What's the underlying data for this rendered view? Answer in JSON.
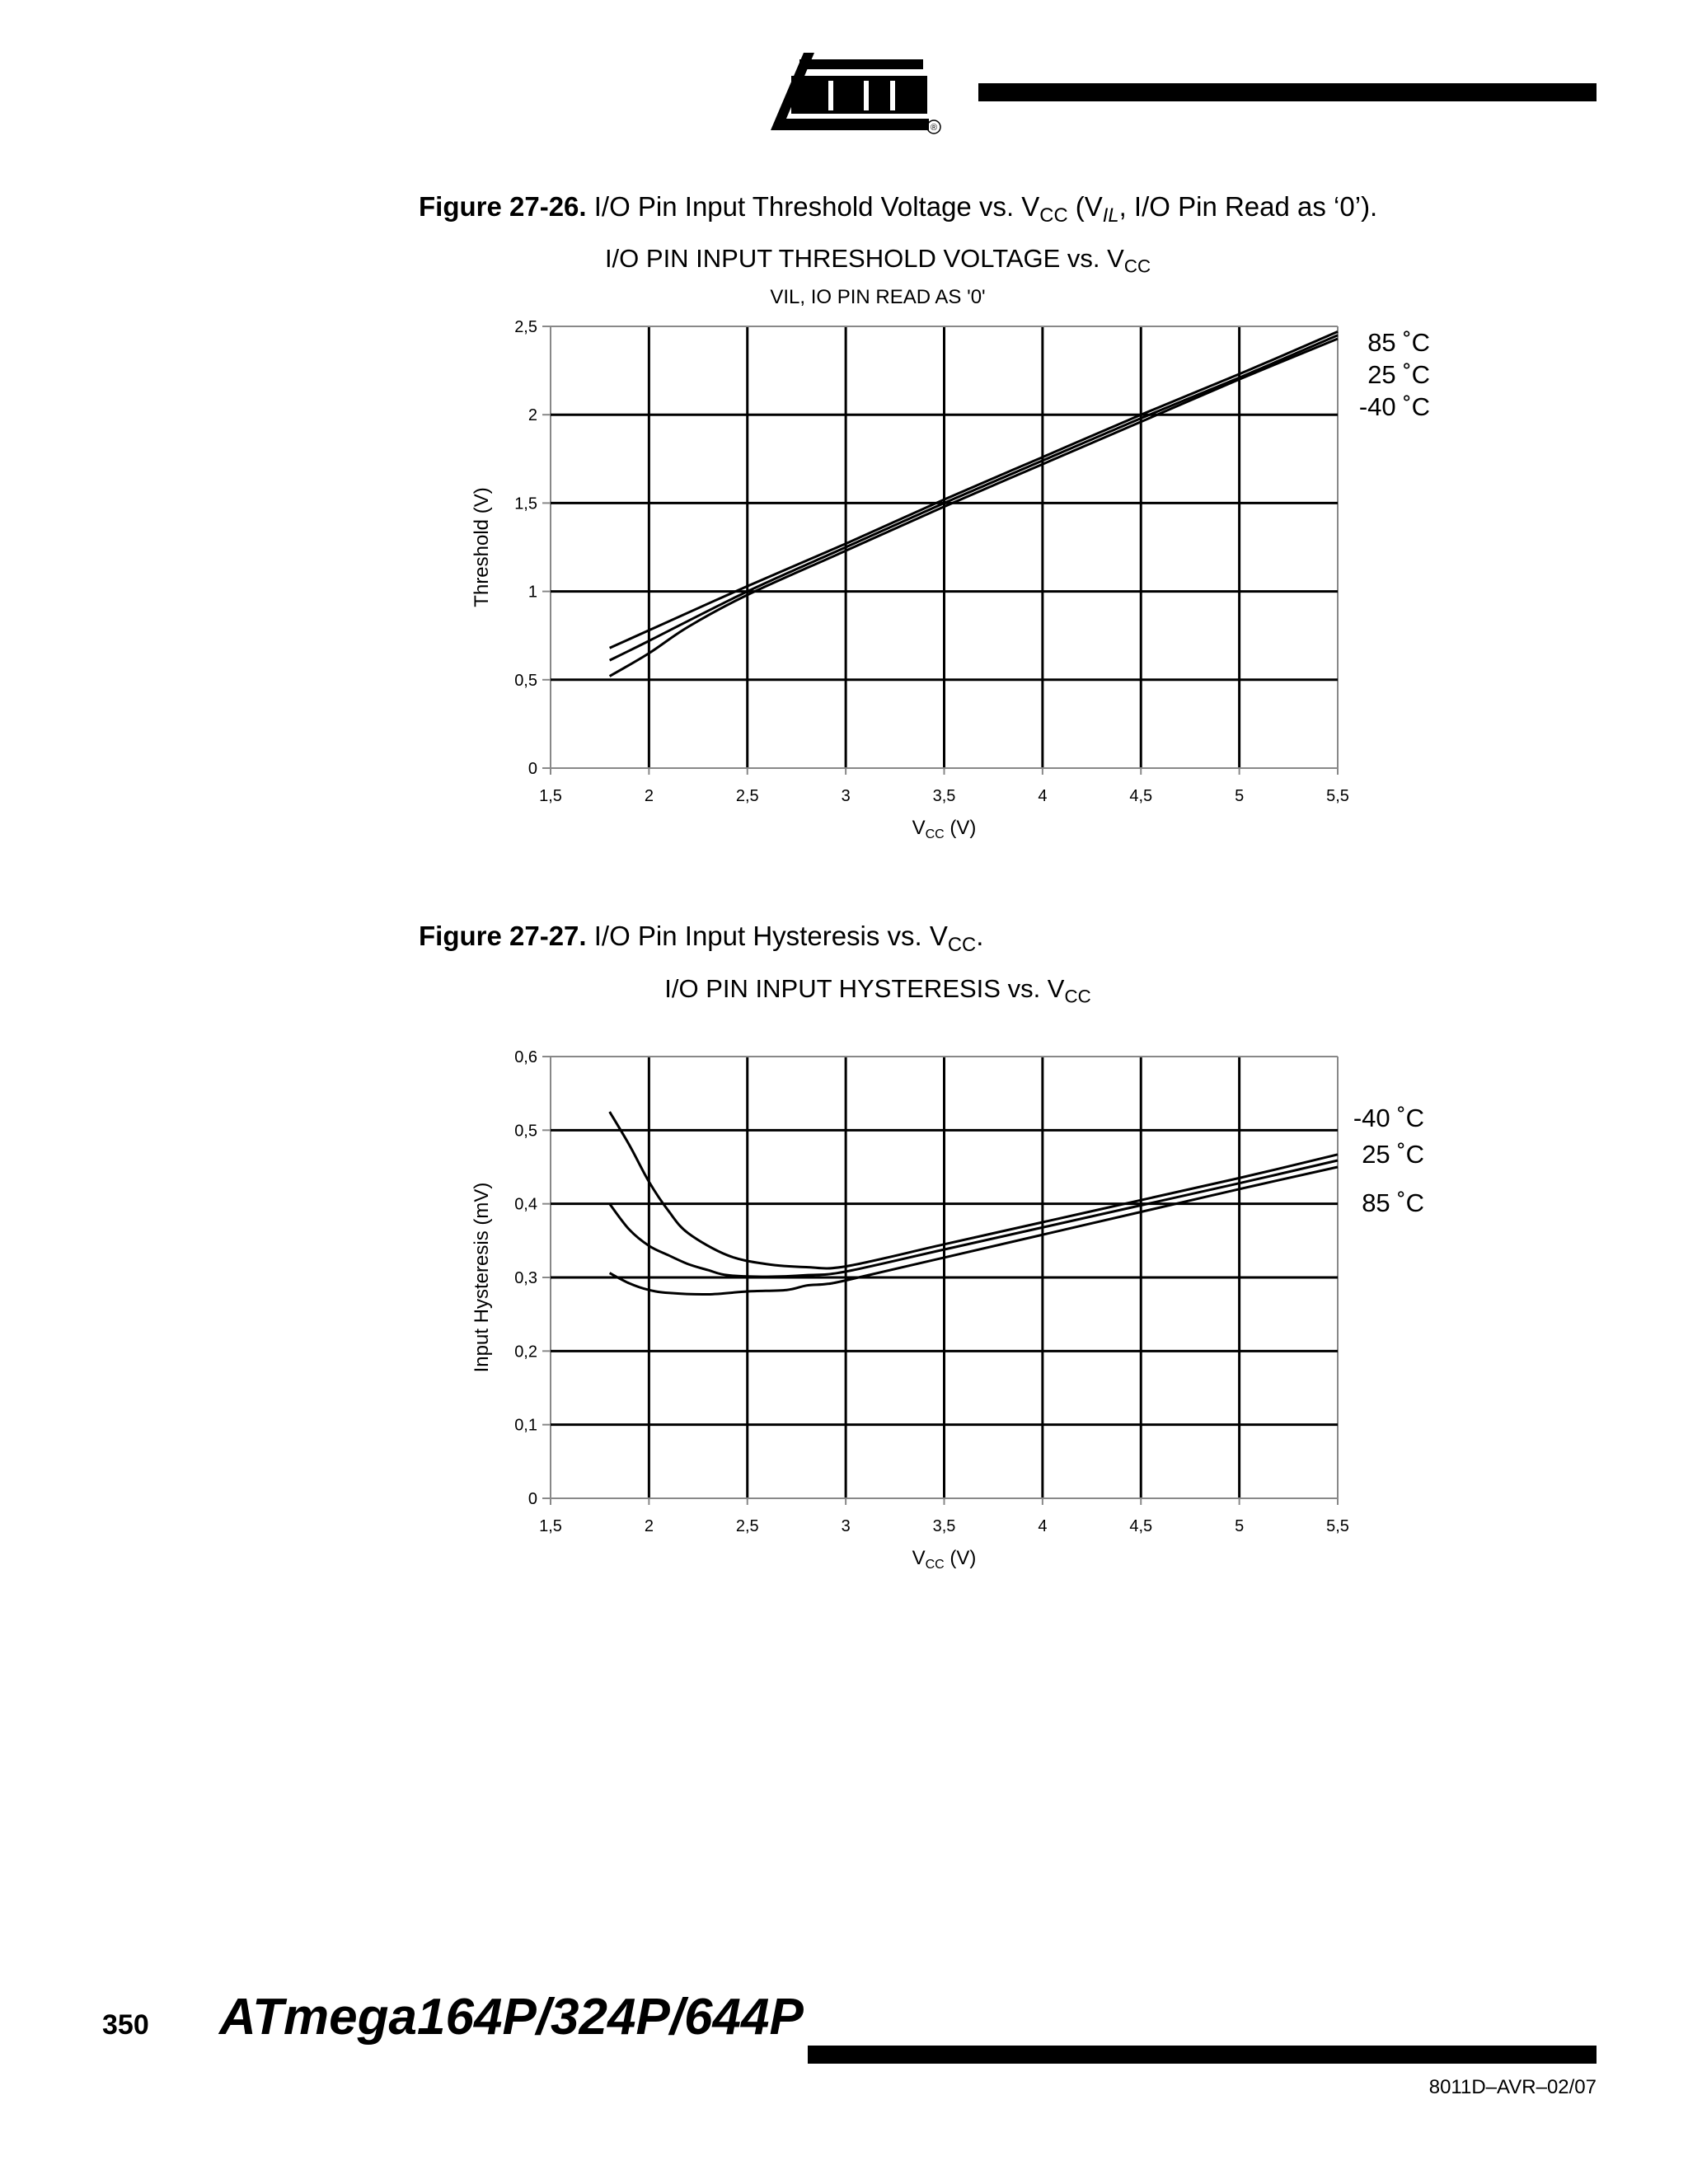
{
  "header": {
    "logo_text": "ATMEL",
    "logo_mark": "®"
  },
  "figure1": {
    "label": "Figure 27-26.",
    "caption_pre": "I/O Pin Input Threshold Voltage vs. V",
    "caption_sub": "CC",
    "caption_mid": " (V",
    "caption_sub2": "IL",
    "caption_post": ", I/O Pin Read as ‘0’).",
    "title_pre": "I/O PIN INPUT THRESHOLD VOLTAGE vs. V",
    "title_sub": "CC",
    "subtitle": "VIL, IO PIN READ AS '0'"
  },
  "figure2": {
    "label": "Figure 27-27.",
    "caption_pre": "I/O Pin Input Hysteresis vs. V",
    "caption_sub": "CC",
    "caption_post": ".",
    "title_pre": "I/O PIN INPUT HYSTERESIS vs. V",
    "title_sub": "CC"
  },
  "chart_data": [
    {
      "type": "line",
      "title": "I/O PIN INPUT THRESHOLD VOLTAGE vs. VCC",
      "subtitle": "VIL, IO PIN READ AS '0'",
      "xlabel_main": "V",
      "xlabel_sub": "CC",
      "xlabel_unit": " (V)",
      "ylabel": "Threshold (V)",
      "xlim": [
        1.5,
        5.5
      ],
      "ylim": [
        0,
        2.5
      ],
      "xticks": [
        1.5,
        2,
        2.5,
        3,
        3.5,
        4,
        4.5,
        5,
        5.5
      ],
      "xtick_labels": [
        "1,5",
        "2",
        "2,5",
        "3",
        "3,5",
        "4",
        "4,5",
        "5",
        "5,5"
      ],
      "yticks": [
        0,
        0.5,
        1,
        1.5,
        2,
        2.5
      ],
      "ytick_labels": [
        "0",
        "0,5",
        "1",
        "1,5",
        "2",
        "2,5"
      ],
      "grid": true,
      "legend_placement": "right",
      "series": [
        {
          "name": "85 ˚C",
          "x": [
            1.8,
            2.0,
            2.5,
            3.0,
            3.5,
            4.0,
            4.5,
            5.0,
            5.5
          ],
          "y": [
            0.68,
            0.78,
            1.03,
            1.27,
            1.52,
            1.76,
            2.0,
            2.23,
            2.47
          ]
        },
        {
          "name": "25 ˚C",
          "x": [
            1.8,
            2.0,
            2.5,
            3.0,
            3.5,
            4.0,
            4.5,
            5.0,
            5.5
          ],
          "y": [
            0.61,
            0.72,
            1.0,
            1.25,
            1.5,
            1.74,
            1.98,
            2.21,
            2.45
          ]
        },
        {
          "name": "-40 ˚C",
          "x": [
            1.8,
            2.0,
            2.2,
            2.5,
            3.0,
            3.5,
            4.0,
            4.5,
            5.0,
            5.5
          ],
          "y": [
            0.52,
            0.65,
            0.8,
            0.98,
            1.23,
            1.48,
            1.72,
            1.96,
            2.2,
            2.43
          ]
        }
      ]
    },
    {
      "type": "line",
      "title": "I/O PIN INPUT HYSTERESIS vs. VCC",
      "xlabel_main": "V",
      "xlabel_sub": "CC",
      "xlabel_unit": " (V)",
      "ylabel": "Input Hysteresis (mV)",
      "xlim": [
        1.5,
        5.5
      ],
      "ylim": [
        0,
        0.6
      ],
      "xticks": [
        1.5,
        2,
        2.5,
        3,
        3.5,
        4,
        4.5,
        5,
        5.5
      ],
      "xtick_labels": [
        "1,5",
        "2",
        "2,5",
        "3",
        "3,5",
        "4",
        "4,5",
        "5",
        "5,5"
      ],
      "yticks": [
        0,
        0.1,
        0.2,
        0.3,
        0.4,
        0.5,
        0.6
      ],
      "ytick_labels": [
        "0",
        "0,1",
        "0,2",
        "0,3",
        "0,4",
        "0,5",
        "0,6"
      ],
      "grid": true,
      "legend_placement": "right",
      "series": [
        {
          "name": "-40 ˚C",
          "x": [
            1.8,
            1.9,
            2.0,
            2.1,
            2.2,
            2.4,
            2.6,
            2.8,
            3.0,
            3.5,
            4.0,
            4.5,
            5.0,
            5.5
          ],
          "y": [
            0.525,
            0.48,
            0.43,
            0.39,
            0.36,
            0.33,
            0.318,
            0.314,
            0.315,
            0.345,
            0.375,
            0.405,
            0.435,
            0.467
          ]
        },
        {
          "name": "25 ˚C",
          "x": [
            1.8,
            1.9,
            2.0,
            2.1,
            2.2,
            2.3,
            2.4,
            2.6,
            2.8,
            3.0,
            3.5,
            4.0,
            4.5,
            5.0,
            5.5
          ],
          "y": [
            0.4,
            0.365,
            0.343,
            0.33,
            0.318,
            0.31,
            0.303,
            0.301,
            0.303,
            0.308,
            0.338,
            0.368,
            0.398,
            0.428,
            0.459
          ]
        },
        {
          "name": "85 ˚C",
          "x": [
            1.8,
            1.9,
            2.0,
            2.1,
            2.3,
            2.5,
            2.7,
            2.8,
            2.9,
            3.0,
            3.5,
            4.0,
            4.5,
            5.0,
            5.5
          ],
          "y": [
            0.306,
            0.292,
            0.283,
            0.279,
            0.277,
            0.281,
            0.283,
            0.289,
            0.291,
            0.296,
            0.327,
            0.358,
            0.389,
            0.42,
            0.45
          ]
        }
      ]
    }
  ],
  "footer": {
    "page_number": "350",
    "title": "ATmega164P/324P/644P",
    "doc_number": "8011D–AVR–02/07"
  }
}
